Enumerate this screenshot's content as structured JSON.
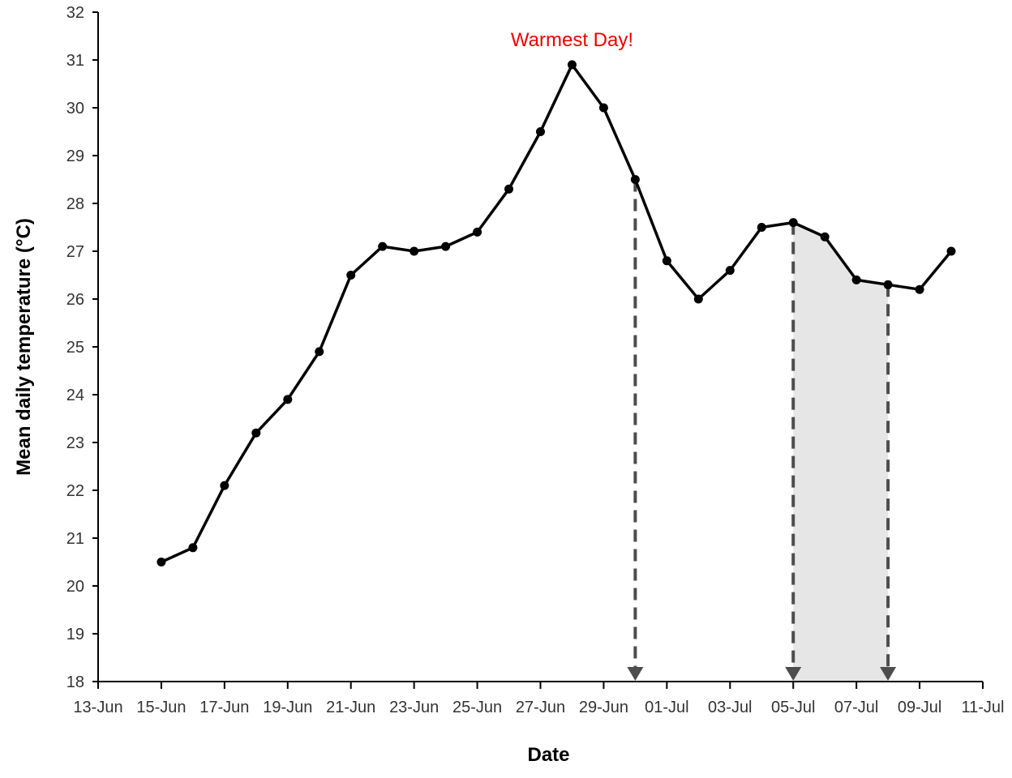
{
  "chart_data": {
    "type": "line",
    "xlabel": "Date",
    "ylabel": "Mean daily temperature (°C)",
    "ylim": [
      18,
      32
    ],
    "xlim": [
      "13-Jun",
      "11-Jul"
    ],
    "x_ticks": [
      "13-Jun",
      "15-Jun",
      "17-Jun",
      "19-Jun",
      "21-Jun",
      "23-Jun",
      "25-Jun",
      "27-Jun",
      "29-Jun",
      "01-Jul",
      "03-Jul",
      "05-Jul",
      "07-Jul",
      "09-Jul",
      "11-Jul"
    ],
    "y_ticks": [
      "18",
      "19",
      "20",
      "21",
      "22",
      "23",
      "24",
      "25",
      "26",
      "27",
      "28",
      "29",
      "30",
      "31",
      "32"
    ],
    "grid": false,
    "series": [
      {
        "color": "#000000",
        "x": [
          "15-Jun",
          "16-Jun",
          "17-Jun",
          "18-Jun",
          "19-Jun",
          "20-Jun",
          "21-Jun",
          "22-Jun",
          "23-Jun",
          "24-Jun",
          "25-Jun",
          "26-Jun",
          "27-Jun",
          "28-Jun",
          "29-Jun",
          "30-Jun",
          "01-Jul",
          "02-Jul",
          "03-Jul",
          "04-Jul",
          "05-Jul",
          "06-Jul",
          "07-Jul",
          "08-Jul",
          "09-Jul",
          "10-Jul"
        ],
        "values": [
          20.5,
          20.8,
          22.1,
          23.2,
          23.9,
          24.9,
          26.5,
          27.1,
          27.0,
          27.1,
          27.4,
          28.3,
          29.5,
          30.9,
          30.0,
          28.5,
          26.8,
          26.0,
          26.6,
          27.5,
          27.6,
          27.3,
          26.4,
          26.3,
          26.2,
          27.0
        ]
      }
    ],
    "annotations": [
      {
        "text": "Warmest Day!",
        "color": "#ee0000",
        "near": "28-Jun"
      }
    ],
    "markers": [
      {
        "type": "dashed-arrow-down",
        "x": "30-Jun",
        "color": "#4d4d4d"
      },
      {
        "type": "dashed-arrow-down",
        "x": "05-Jul",
        "color": "#4d4d4d"
      },
      {
        "type": "dashed-arrow-down",
        "x": "08-Jul",
        "color": "#4d4d4d"
      }
    ],
    "shaded_region": {
      "from": "05-Jul",
      "to": "08-Jul",
      "color": "#e6e6e6"
    }
  }
}
